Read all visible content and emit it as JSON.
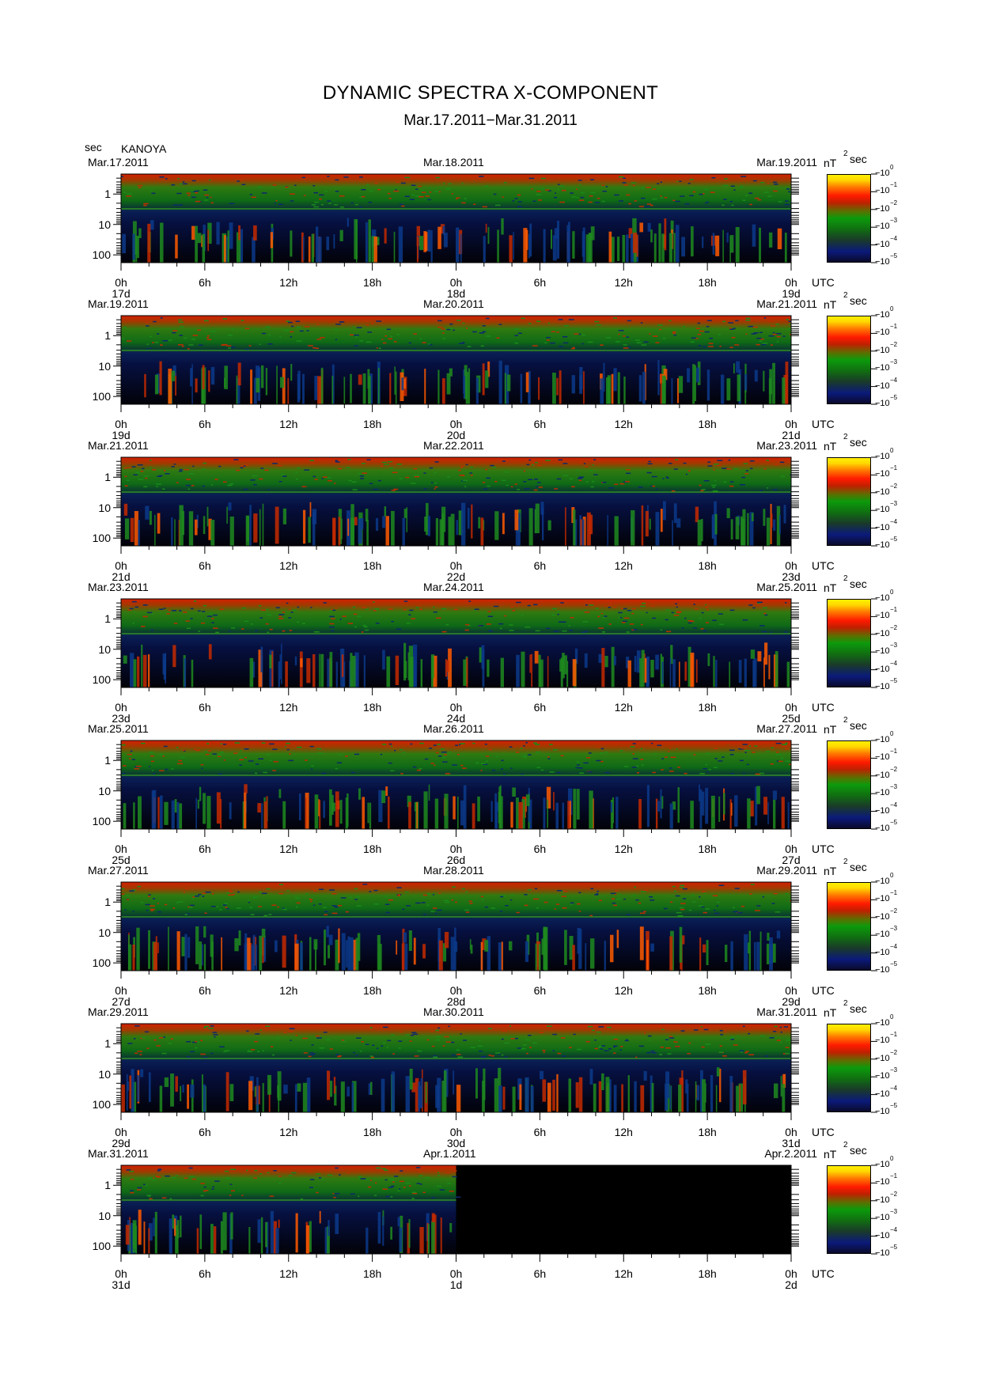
{
  "chart_data": {
    "type": "heatmap",
    "title": "DYNAMIC SPECTRA X-COMPONENT",
    "subtitle": "Mar.17.2011−Mar.31.2011",
    "station": "KANOYA",
    "y_unit": "sec",
    "y_ticks": [
      "1",
      "10",
      "100"
    ],
    "y_scale": "log",
    "time_unit": "UTC",
    "colorbar_unit": "nT",
    "colorbar_unit_suffix": "sec",
    "colorbar_ticks": [
      "−10 0",
      "−10 −1",
      "−10 −2",
      "−10 −3",
      "−10 −4",
      "−10 −5"
    ],
    "colorbar_labels": [
      {
        "base": "10",
        "exp": "0"
      },
      {
        "base": "10",
        "exp": "−1"
      },
      {
        "base": "10",
        "exp": "−2"
      },
      {
        "base": "10",
        "exp": "−3"
      },
      {
        "base": "10",
        "exp": "−4"
      },
      {
        "base": "10",
        "exp": "−5"
      }
    ],
    "hour_ticks": [
      "0h",
      "6h",
      "12h",
      "18h",
      "0h",
      "6h",
      "12h",
      "18h",
      "0h"
    ],
    "panels": [
      {
        "dates": [
          "Mar.17.2011",
          "Mar.18.2011",
          "Mar.19.2011"
        ],
        "days": [
          "17d",
          "18d",
          "19d"
        ],
        "data_until_fraction": 1.0
      },
      {
        "dates": [
          "Mar.19.2011",
          "Mar.20.2011",
          "Mar.21.2011"
        ],
        "days": [
          "19d",
          "20d",
          "21d"
        ],
        "data_until_fraction": 1.0
      },
      {
        "dates": [
          "Mar.21.2011",
          "Mar.22.2011",
          "Mar.23.2011"
        ],
        "days": [
          "21d",
          "22d",
          "23d"
        ],
        "data_until_fraction": 1.0
      },
      {
        "dates": [
          "Mar.23.2011",
          "Mar.24.2011",
          "Mar.25.2011"
        ],
        "days": [
          "23d",
          "24d",
          "25d"
        ],
        "data_until_fraction": 1.0
      },
      {
        "dates": [
          "Mar.25.2011",
          "Mar.26.2011",
          "Mar.27.2011"
        ],
        "days": [
          "25d",
          "26d",
          "27d"
        ],
        "data_until_fraction": 1.0
      },
      {
        "dates": [
          "Mar.27.2011",
          "Mar.28.2011",
          "Mar.29.2011"
        ],
        "days": [
          "27d",
          "28d",
          "29d"
        ],
        "data_until_fraction": 1.0
      },
      {
        "dates": [
          "Mar.29.2011",
          "Mar.30.2011",
          "Mar.31.2011"
        ],
        "days": [
          "29d",
          "30d",
          "31d"
        ],
        "data_until_fraction": 1.0
      },
      {
        "dates": [
          "Mar.31.2011",
          "Apr.1.2011",
          "Apr.2.2011"
        ],
        "days": [
          "31d",
          "1d",
          "2d"
        ],
        "data_until_fraction": 0.5
      }
    ]
  }
}
